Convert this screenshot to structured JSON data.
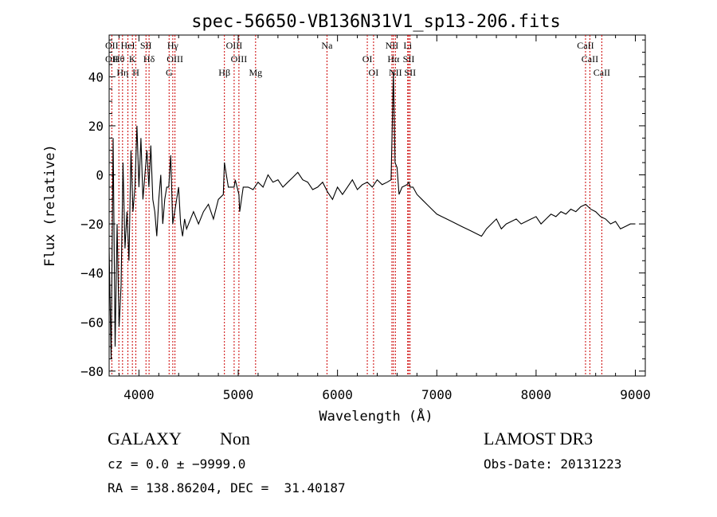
{
  "chart_data": {
    "type": "line",
    "title": "spec-56650-VB136N31V1_sp13-206.fits",
    "xlabel": "Wavelength (Å)",
    "ylabel": "Flux (relative)",
    "xlim": [
      3700,
      9100
    ],
    "ylim": [
      -82,
      57
    ],
    "x_ticks": [
      4000,
      5000,
      6000,
      7000,
      8000,
      9000
    ],
    "x_tick_labels": [
      "4000",
      "5000",
      "6000",
      "7000",
      "8000",
      "9000"
    ],
    "y_ticks": [
      -80,
      -60,
      -40,
      -20,
      0,
      20,
      40
    ],
    "y_tick_labels": [
      "−80",
      "−60",
      "−40",
      "−20",
      "0",
      "20",
      "40"
    ],
    "grid": false,
    "line_color": "#000000",
    "marker_line_color": "#cc0000",
    "series": [
      {
        "x": [
          3700,
          3720,
          3740,
          3760,
          3780,
          3800,
          3820,
          3840,
          3860,
          3880,
          3900,
          3920,
          3940,
          3960,
          3980,
          4000,
          4020,
          4040,
          4060,
          4080,
          4100,
          4120,
          4140,
          4160,
          4180,
          4200,
          4220,
          4240,
          4260,
          4280,
          4300,
          4320,
          4340,
          4360,
          4380,
          4400,
          4420,
          4440,
          4460,
          4480,
          4500,
          4550,
          4600,
          4650,
          4700,
          4750,
          4800,
          4850,
          4861,
          4900,
          4959,
          4970,
          5007,
          5015,
          5050,
          5100,
          5150,
          5200,
          5250,
          5300,
          5350,
          5400,
          5450,
          5500,
          5550,
          5600,
          5650,
          5700,
          5750,
          5800,
          5850,
          5900,
          5950,
          6000,
          6050,
          6100,
          6150,
          6200,
          6250,
          6300,
          6350,
          6400,
          6450,
          6500,
          6540,
          6563,
          6580,
          6600,
          6620,
          6650,
          6700,
          6717,
          6731,
          6760,
          6800,
          6850,
          6900,
          6950,
          7000,
          7050,
          7100,
          7150,
          7200,
          7250,
          7300,
          7350,
          7400,
          7450,
          7500,
          7550,
          7600,
          7650,
          7700,
          7750,
          7800,
          7850,
          7900,
          7950,
          8000,
          8050,
          8100,
          8150,
          8200,
          8250,
          8300,
          8350,
          8400,
          8450,
          8500,
          8550,
          8600,
          8650,
          8700,
          8750,
          8800,
          8850,
          8900,
          8950,
          9000
        ],
        "y": [
          -30,
          -75,
          15,
          -70,
          -20,
          -62,
          -45,
          5,
          -30,
          -15,
          -35,
          10,
          -15,
          -5,
          20,
          -5,
          15,
          -10,
          0,
          10,
          -5,
          12,
          -10,
          -15,
          -25,
          -10,
          0,
          -20,
          -10,
          -5,
          -5,
          8,
          -20,
          -15,
          -10,
          -5,
          -20,
          -25,
          -18,
          -22,
          -20,
          -15,
          -20,
          -15,
          -12,
          -18,
          -10,
          -8,
          5,
          -5,
          -5,
          -2,
          -8,
          -15,
          -5,
          -5,
          -6,
          -3,
          -5,
          0,
          -3,
          -2,
          -5,
          -3,
          -1,
          1,
          -2,
          -3,
          -6,
          -5,
          -3,
          -7,
          -10,
          -5,
          -8,
          -5,
          -2,
          -6,
          -4,
          -3,
          -5,
          -2,
          -4,
          -3,
          -2,
          42,
          5,
          3,
          -8,
          -5,
          -4,
          -3,
          -5,
          -5,
          -8,
          -10,
          -12,
          -14,
          -16,
          -17,
          -18,
          -19,
          -20,
          -21,
          -22,
          -23,
          -24,
          -25,
          -22,
          -20,
          -18,
          -22,
          -20,
          -19,
          -18,
          -20,
          -19,
          -18,
          -17,
          -20,
          -18,
          -16,
          -17,
          -15,
          -16,
          -14,
          -15,
          -13,
          -12,
          -14,
          -15,
          -17,
          -18,
          -20,
          -19,
          -22,
          -21,
          -20,
          -20
        ]
      }
    ],
    "lines": [
      {
        "wl": 3727,
        "labels": [
          "OII",
          "OII"
        ]
      },
      {
        "wl": 3798,
        "labels": [
          "Hθ"
        ]
      },
      {
        "wl": 3835,
        "labels": [
          "Hη"
        ]
      },
      {
        "wl": 3889,
        "labels": [
          "HeI"
        ]
      },
      {
        "wl": 3934,
        "labels": [
          "K"
        ]
      },
      {
        "wl": 3969,
        "labels": [
          "H"
        ]
      },
      {
        "wl": 4071,
        "labels": [
          "SII"
        ]
      },
      {
        "wl": 4102,
        "labels": [
          "Hδ"
        ]
      },
      {
        "wl": 4304,
        "labels": [
          "G"
        ]
      },
      {
        "wl": 4341,
        "labels": [
          "Hγ"
        ]
      },
      {
        "wl": 4363,
        "labels": [
          "OIII"
        ]
      },
      {
        "wl": 4861,
        "labels": [
          "Hβ"
        ]
      },
      {
        "wl": 4959,
        "labels": [
          "OIII"
        ]
      },
      {
        "wl": 5007,
        "labels": [
          "OIII"
        ]
      },
      {
        "wl": 5175,
        "labels": [
          "Mg"
        ]
      },
      {
        "wl": 5894,
        "labels": [
          "Na"
        ]
      },
      {
        "wl": 6300,
        "labels": [
          "OI"
        ]
      },
      {
        "wl": 6363,
        "labels": [
          "OI"
        ]
      },
      {
        "wl": 6548,
        "labels": [
          "NII"
        ]
      },
      {
        "wl": 6563,
        "labels": [
          "Hα"
        ]
      },
      {
        "wl": 6583,
        "labels": [
          "NII"
        ]
      },
      {
        "wl": 6707,
        "labels": [
          "Li"
        ]
      },
      {
        "wl": 6717,
        "labels": [
          "SII"
        ]
      },
      {
        "wl": 6731,
        "labels": [
          "SII"
        ]
      },
      {
        "wl": 8498,
        "labels": [
          "CaII"
        ]
      },
      {
        "wl": 8542,
        "labels": [
          "CaII"
        ]
      },
      {
        "wl": 8662,
        "labels": [
          "CaII"
        ]
      }
    ]
  },
  "info": {
    "class_label": "GALAXY",
    "subclass_label": "Non",
    "cz_text": "cz = 0.0 ± −9999.0",
    "radec_text": "RA = 138.86204, DEC =  31.40187",
    "survey_label": "LAMOST DR3",
    "obs_date_text": "Obs-Date: 20131223"
  }
}
